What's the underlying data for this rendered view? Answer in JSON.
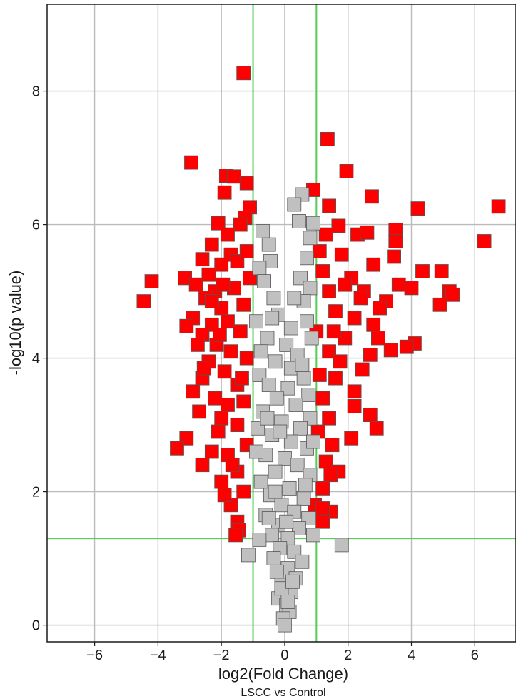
{
  "chart_data": {
    "type": "scatter",
    "title": "",
    "subtitle": "LSCC vs Control",
    "xlabel": "log2(Fold Change)",
    "ylabel": "-log10(p value)",
    "xlim": [
      -7.5,
      7.3
    ],
    "ylim": [
      -0.25,
      9.3
    ],
    "x_ticks": [
      -6,
      -4,
      -2,
      0,
      2,
      4,
      6
    ],
    "y_ticks": [
      0,
      2,
      4,
      6,
      8
    ],
    "grid": true,
    "thresholds": {
      "x": [
        -1,
        1
      ],
      "y": 1.3
    },
    "colors": {
      "significant": "#ff0000",
      "not_significant": "#c0c0c0",
      "threshold_line": "#55cc55",
      "grid": "#bbbbbb"
    },
    "marker": "square",
    "series": [
      {
        "key": "significant",
        "points": [
          [
            -1.3,
            8.27
          ],
          [
            -2.95,
            6.93
          ],
          [
            -1.85,
            6.73
          ],
          [
            -1.6,
            6.72
          ],
          [
            -1.2,
            6.62
          ],
          [
            -1.9,
            6.48
          ],
          [
            -1.1,
            6.26
          ],
          [
            -1.25,
            6.1
          ],
          [
            -1.4,
            6.0
          ],
          [
            -2.1,
            6.02
          ],
          [
            -1.8,
            5.85
          ],
          [
            -2.3,
            5.7
          ],
          [
            -1.7,
            5.55
          ],
          [
            -2.6,
            5.48
          ],
          [
            -2.0,
            5.4
          ],
          [
            -1.5,
            5.45
          ],
          [
            -1.2,
            5.6
          ],
          [
            -3.15,
            5.2
          ],
          [
            -4.2,
            5.15
          ],
          [
            -2.8,
            5.1
          ],
          [
            -2.2,
            5.0
          ],
          [
            -1.6,
            5.05
          ],
          [
            -1.1,
            5.2
          ],
          [
            -4.45,
            4.85
          ],
          [
            -2.5,
            4.9
          ],
          [
            -2.0,
            4.75
          ],
          [
            -1.3,
            4.8
          ],
          [
            -2.9,
            4.6
          ],
          [
            -2.3,
            4.5
          ],
          [
            -1.8,
            4.55
          ],
          [
            -3.1,
            4.48
          ],
          [
            -2.6,
            4.35
          ],
          [
            -1.4,
            4.4
          ],
          [
            -2.15,
            4.2
          ],
          [
            -2.75,
            4.2
          ],
          [
            -1.7,
            4.1
          ],
          [
            -1.2,
            4.0
          ],
          [
            -2.4,
            3.95
          ],
          [
            -1.9,
            3.8
          ],
          [
            -2.6,
            3.7
          ],
          [
            -1.5,
            3.6
          ],
          [
            -2.9,
            3.5
          ],
          [
            -2.2,
            3.4
          ],
          [
            -1.8,
            3.3
          ],
          [
            -1.3,
            3.35
          ],
          [
            -2.7,
            3.2
          ],
          [
            -2.0,
            3.1
          ],
          [
            -1.5,
            3.0
          ],
          [
            -3.1,
            2.8
          ],
          [
            -3.4,
            2.65
          ],
          [
            -2.3,
            2.6
          ],
          [
            -1.8,
            2.55
          ],
          [
            -1.2,
            2.7
          ],
          [
            -2.6,
            2.4
          ],
          [
            -1.5,
            2.3
          ],
          [
            -2.0,
            2.15
          ],
          [
            -1.3,
            2.0
          ],
          [
            -1.7,
            1.8
          ],
          [
            -1.9,
            1.95
          ],
          [
            -1.5,
            1.55
          ],
          [
            -1.45,
            1.42
          ],
          [
            -1.55,
            1.35
          ],
          [
            -2.3,
            4.85
          ],
          [
            -2.4,
            5.25
          ],
          [
            -1.95,
            5.1
          ],
          [
            -2.05,
            4.35
          ],
          [
            -2.55,
            3.85
          ],
          [
            -1.35,
            3.7
          ],
          [
            -2.1,
            2.9
          ],
          [
            -1.65,
            2.4
          ],
          [
            0.9,
            6.52
          ],
          [
            1.35,
            7.28
          ],
          [
            1.95,
            6.8
          ],
          [
            2.75,
            6.42
          ],
          [
            1.4,
            6.28
          ],
          [
            4.2,
            6.24
          ],
          [
            6.75,
            6.27
          ],
          [
            1.7,
            5.98
          ],
          [
            1.3,
            5.85
          ],
          [
            2.3,
            5.85
          ],
          [
            2.6,
            5.88
          ],
          [
            3.5,
            5.92
          ],
          [
            3.5,
            5.75
          ],
          [
            6.3,
            5.75
          ],
          [
            1.1,
            5.6
          ],
          [
            1.8,
            5.55
          ],
          [
            3.45,
            5.52
          ],
          [
            2.8,
            5.4
          ],
          [
            1.2,
            5.3
          ],
          [
            2.1,
            5.2
          ],
          [
            4.35,
            5.3
          ],
          [
            4.95,
            5.3
          ],
          [
            3.6,
            5.1
          ],
          [
            4.0,
            5.05
          ],
          [
            2.5,
            5.0
          ],
          [
            1.4,
            5.0
          ],
          [
            5.2,
            5.0
          ],
          [
            5.3,
            4.95
          ],
          [
            4.9,
            4.8
          ],
          [
            3.2,
            4.85
          ],
          [
            1.6,
            4.7
          ],
          [
            2.2,
            4.6
          ],
          [
            2.8,
            4.5
          ],
          [
            3.0,
            4.75
          ],
          [
            1.0,
            4.4
          ],
          [
            1.9,
            4.3
          ],
          [
            4.1,
            4.22
          ],
          [
            3.85,
            4.17
          ],
          [
            3.35,
            4.12
          ],
          [
            2.7,
            4.05
          ],
          [
            1.4,
            4.1
          ],
          [
            2.45,
            3.83
          ],
          [
            1.6,
            3.7
          ],
          [
            2.2,
            3.5
          ],
          [
            1.2,
            3.4
          ],
          [
            2.2,
            3.28
          ],
          [
            1.4,
            3.1
          ],
          [
            2.7,
            3.15
          ],
          [
            2.9,
            2.95
          ],
          [
            1.05,
            2.9
          ],
          [
            2.1,
            2.8
          ],
          [
            1.5,
            2.7
          ],
          [
            1.3,
            2.45
          ],
          [
            1.7,
            2.3
          ],
          [
            1.45,
            2.25
          ],
          [
            1.2,
            2.05
          ],
          [
            0.95,
            1.8
          ],
          [
            1.45,
            1.7
          ],
          [
            1.2,
            1.75
          ],
          [
            1.2,
            1.55
          ],
          [
            1.9,
            5.1
          ],
          [
            1.55,
            4.4
          ],
          [
            2.4,
            4.9
          ],
          [
            1.75,
            3.95
          ],
          [
            1.1,
            3.75
          ],
          [
            2.95,
            4.3
          ]
        ]
      },
      {
        "key": "not_significant",
        "points": [
          [
            0.55,
            6.45
          ],
          [
            0.45,
            6.05
          ],
          [
            -0.7,
            5.9
          ],
          [
            -0.5,
            5.7
          ],
          [
            0.9,
            6.02
          ],
          [
            0.8,
            5.8
          ],
          [
            -0.45,
            5.45
          ],
          [
            -0.8,
            5.35
          ],
          [
            0.7,
            5.5
          ],
          [
            0.5,
            5.2
          ],
          [
            -0.65,
            5.15
          ],
          [
            -0.35,
            4.9
          ],
          [
            0.8,
            5.05
          ],
          [
            0.6,
            4.85
          ],
          [
            -0.9,
            4.55
          ],
          [
            -0.2,
            4.65
          ],
          [
            0.2,
            4.45
          ],
          [
            0.7,
            4.55
          ],
          [
            -0.55,
            4.3
          ],
          [
            0.05,
            4.2
          ],
          [
            -0.75,
            4.1
          ],
          [
            0.4,
            4.05
          ],
          [
            0.85,
            4.3
          ],
          [
            -0.3,
            3.95
          ],
          [
            0.2,
            3.85
          ],
          [
            -0.8,
            3.75
          ],
          [
            0.6,
            3.7
          ],
          [
            -0.5,
            3.6
          ],
          [
            0.1,
            3.55
          ],
          [
            0.75,
            3.45
          ],
          [
            -0.25,
            3.4
          ],
          [
            0.35,
            3.3
          ],
          [
            -0.7,
            3.2
          ],
          [
            0.8,
            3.1
          ],
          [
            -0.1,
            3.05
          ],
          [
            0.5,
            2.95
          ],
          [
            -0.85,
            2.95
          ],
          [
            -0.4,
            2.85
          ],
          [
            0.2,
            2.75
          ],
          [
            0.7,
            2.65
          ],
          [
            -0.6,
            2.55
          ],
          [
            0.0,
            2.5
          ],
          [
            0.4,
            2.4
          ],
          [
            -0.3,
            2.3
          ],
          [
            0.8,
            2.25
          ],
          [
            -0.75,
            2.15
          ],
          [
            0.15,
            2.05
          ],
          [
            -0.45,
            1.95
          ],
          [
            0.6,
            1.9
          ],
          [
            -0.1,
            1.8
          ],
          [
            0.3,
            1.7
          ],
          [
            -0.6,
            1.65
          ],
          [
            0.75,
            1.6
          ],
          [
            -0.2,
            1.5
          ],
          [
            0.45,
            1.45
          ],
          [
            -0.4,
            1.35
          ],
          [
            0.1,
            1.3
          ],
          [
            -0.8,
            1.28
          ],
          [
            0.9,
            1.35
          ],
          [
            -0.15,
            1.15
          ],
          [
            0.3,
            1.1
          ],
          [
            -0.35,
            1.0
          ],
          [
            0.55,
            0.95
          ],
          [
            0.1,
            0.85
          ],
          [
            -0.25,
            0.8
          ],
          [
            0.35,
            0.7
          ],
          [
            -0.1,
            0.6
          ],
          [
            0.2,
            0.5
          ],
          [
            -0.2,
            0.4
          ],
          [
            0.05,
            0.3
          ],
          [
            0.15,
            0.2
          ],
          [
            -0.05,
            0.1
          ],
          [
            0.0,
            0.0
          ],
          [
            -0.1,
            0.55
          ],
          [
            0.1,
            0.35
          ],
          [
            -1.15,
            1.05
          ],
          [
            1.8,
            1.2
          ],
          [
            0.3,
            6.3
          ],
          [
            -0.55,
            3.1
          ],
          [
            0.65,
            2.1
          ],
          [
            -0.9,
            2.6
          ],
          [
            0.9,
            2.75
          ],
          [
            -0.4,
            4.6
          ],
          [
            0.3,
            4.9
          ],
          [
            0.55,
            3.9
          ],
          [
            -0.15,
            2.9
          ],
          [
            0.05,
            1.55
          ],
          [
            -0.5,
            1.6
          ],
          [
            0.25,
            0.65
          ],
          [
            -0.3,
            2.0
          ]
        ]
      }
    ]
  }
}
